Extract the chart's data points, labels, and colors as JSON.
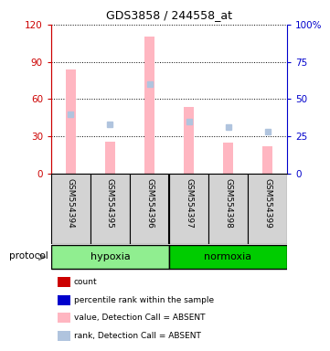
{
  "title": "GDS3858 / 244558_at",
  "samples": [
    "GSM554394",
    "GSM554395",
    "GSM554396",
    "GSM554397",
    "GSM554398",
    "GSM554399"
  ],
  "bar_values": [
    84,
    26,
    110,
    54,
    25,
    22
  ],
  "rank_values": [
    40,
    33,
    60,
    35,
    31,
    28
  ],
  "ylim_left": [
    0,
    120
  ],
  "ylim_right": [
    0,
    100
  ],
  "yticks_left": [
    0,
    30,
    60,
    90,
    120
  ],
  "ytick_labels_left": [
    "0",
    "30",
    "60",
    "90",
    "120"
  ],
  "yticks_right": [
    0,
    25,
    50,
    75,
    100
  ],
  "ytick_labels_right": [
    "0",
    "25",
    "50",
    "75",
    "100%"
  ],
  "bar_color": "#FFB6C1",
  "rank_color": "#B0C4DE",
  "left_axis_color": "#CC0000",
  "right_axis_color": "#0000CC",
  "bg_color": "#FFFFFF",
  "label_area_color": "#D3D3D3",
  "hypoxia_color": "#90EE90",
  "normoxia_color": "#00CC00",
  "legend_items": [
    {
      "label": "count",
      "color": "#CC0000"
    },
    {
      "label": "percentile rank within the sample",
      "color": "#0000CC"
    },
    {
      "label": "value, Detection Call = ABSENT",
      "color": "#FFB6C1"
    },
    {
      "label": "rank, Detection Call = ABSENT",
      "color": "#B0C4DE"
    }
  ],
  "protocol_label": "protocol"
}
